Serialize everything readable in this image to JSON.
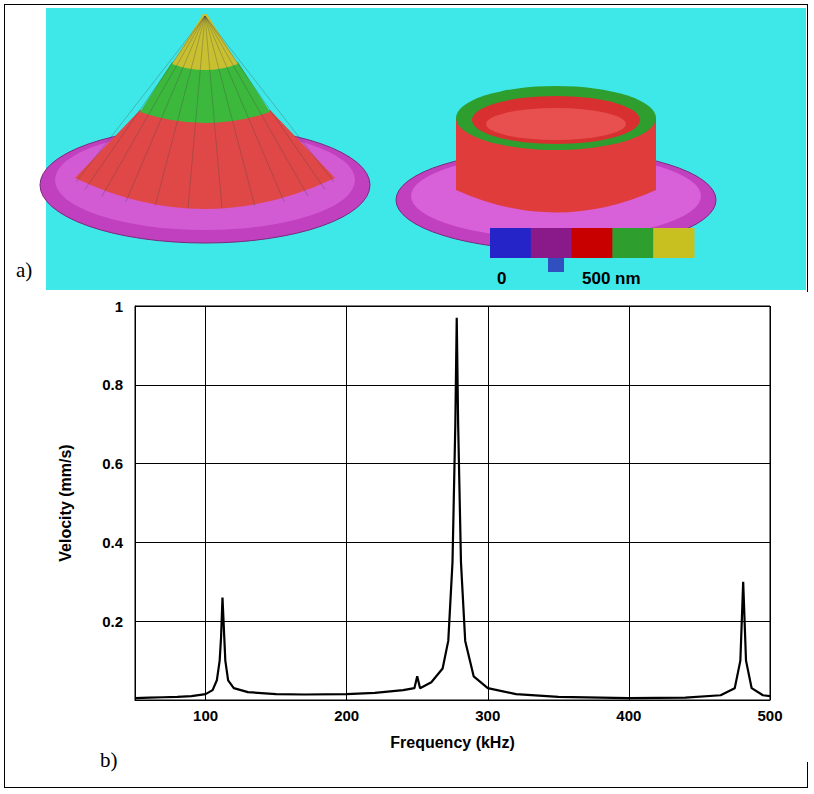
{
  "figure": {
    "panels": [
      {
        "label": "a)",
        "colorbar": {
          "colors": [
            "#2424c8",
            "#8a1a8a",
            "#c80000",
            "#2e9e2e",
            "#c8c020"
          ],
          "labels": [
            "0",
            "500 nm"
          ]
        }
      },
      {
        "label": "b)"
      }
    ]
  },
  "chart_data": {
    "type": "line",
    "xlabel": "Frequency (kHz)",
    "ylabel": "Velocity (mm/s)",
    "x": [
      50,
      60,
      70,
      80,
      90,
      100,
      105,
      108,
      110,
      111,
      112,
      113,
      114,
      116,
      120,
      130,
      150,
      170,
      200,
      220,
      240,
      248,
      250,
      252,
      260,
      268,
      272,
      275,
      277,
      278,
      279,
      281,
      284,
      290,
      300,
      320,
      350,
      400,
      440,
      465,
      475,
      479,
      481,
      483,
      487,
      495,
      500
    ],
    "series": [
      {
        "color": "#000000",
        "values": [
          0.005,
          0.006,
          0.007,
          0.008,
          0.01,
          0.015,
          0.025,
          0.05,
          0.1,
          0.16,
          0.26,
          0.18,
          0.1,
          0.05,
          0.03,
          0.02,
          0.015,
          0.014,
          0.015,
          0.018,
          0.025,
          0.03,
          0.06,
          0.03,
          0.045,
          0.08,
          0.15,
          0.35,
          0.7,
          0.97,
          0.7,
          0.35,
          0.15,
          0.06,
          0.03,
          0.015,
          0.008,
          0.005,
          0.006,
          0.012,
          0.03,
          0.1,
          0.3,
          0.1,
          0.03,
          0.012,
          0.01
        ]
      }
    ],
    "xlim": [
      50,
      500
    ],
    "xticks": [
      100,
      200,
      300,
      400,
      500
    ],
    "ylim": [
      0,
      1
    ],
    "yticks": [
      0.2,
      0.4,
      0.6,
      0.8,
      1
    ],
    "grid": true
  }
}
